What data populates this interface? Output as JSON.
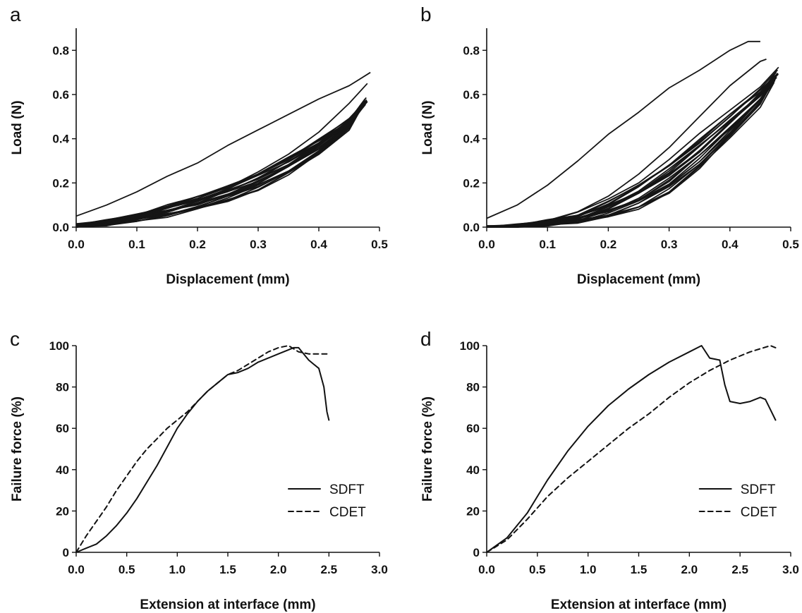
{
  "chart_data": [
    {
      "panel": "a",
      "type": "line",
      "xlabel": "Displacement (mm)",
      "ylabel": "Load (N)",
      "xlim": [
        0,
        0.5
      ],
      "ylim": [
        0,
        0.9
      ],
      "xticks": [
        "0.0",
        "0.1",
        "0.2",
        "0.3",
        "0.4",
        "0.5"
      ],
      "yticks": [
        "0.0",
        "0.2",
        "0.4",
        "0.6",
        "0.8"
      ],
      "grid": false,
      "series": [
        {
          "role": "first-cycle-loading",
          "x": [
            0.0,
            0.05,
            0.1,
            0.15,
            0.2,
            0.25,
            0.3,
            0.35,
            0.4,
            0.45,
            0.48
          ],
          "y": [
            0.0,
            0.02,
            0.05,
            0.09,
            0.13,
            0.18,
            0.25,
            0.33,
            0.43,
            0.56,
            0.65
          ]
        },
        {
          "role": "first-cycle-unloading",
          "x": [
            0.485,
            0.45,
            0.4,
            0.35,
            0.3,
            0.25,
            0.2,
            0.15,
            0.1,
            0.05,
            0.0
          ],
          "y": [
            0.7,
            0.64,
            0.58,
            0.51,
            0.44,
            0.37,
            0.29,
            0.23,
            0.16,
            0.1,
            0.05
          ]
        },
        {
          "role": "later-cycles-upper",
          "x": [
            0.0,
            0.05,
            0.1,
            0.15,
            0.2,
            0.25,
            0.3,
            0.35,
            0.4,
            0.45,
            0.48
          ],
          "y": [
            0.01,
            0.03,
            0.06,
            0.1,
            0.14,
            0.19,
            0.25,
            0.32,
            0.4,
            0.49,
            0.58
          ]
        },
        {
          "role": "later-cycles-lower",
          "x": [
            0.0,
            0.05,
            0.1,
            0.15,
            0.2,
            0.25,
            0.3,
            0.35,
            0.4,
            0.45,
            0.48
          ],
          "y": [
            0.0,
            0.01,
            0.03,
            0.05,
            0.08,
            0.12,
            0.17,
            0.24,
            0.33,
            0.45,
            0.56
          ]
        }
      ]
    },
    {
      "panel": "b",
      "type": "line",
      "xlabel": "Displacement (mm)",
      "ylabel": "Load (N)",
      "xlim": [
        0,
        0.5
      ],
      "ylim": [
        0,
        0.9
      ],
      "xticks": [
        "0.0",
        "0.1",
        "0.2",
        "0.3",
        "0.4",
        "0.5"
      ],
      "yticks": [
        "0.0",
        "0.2",
        "0.4",
        "0.6",
        "0.8"
      ],
      "grid": false,
      "series": [
        {
          "role": "first-cycle-loading",
          "x": [
            0.0,
            0.05,
            0.1,
            0.15,
            0.2,
            0.25,
            0.3,
            0.35,
            0.4,
            0.45,
            0.46
          ],
          "y": [
            0.0,
            0.01,
            0.03,
            0.07,
            0.14,
            0.24,
            0.36,
            0.5,
            0.64,
            0.75,
            0.76
          ]
        },
        {
          "role": "first-cycle-unloading",
          "x": [
            0.45,
            0.43,
            0.4,
            0.35,
            0.3,
            0.25,
            0.2,
            0.15,
            0.1,
            0.05,
            0.0
          ],
          "y": [
            0.84,
            0.84,
            0.8,
            0.71,
            0.63,
            0.52,
            0.42,
            0.3,
            0.19,
            0.1,
            0.04
          ]
        },
        {
          "role": "later-cycles-upper",
          "x": [
            0.0,
            0.05,
            0.1,
            0.15,
            0.2,
            0.25,
            0.3,
            0.35,
            0.4,
            0.45,
            0.48
          ],
          "y": [
            0.0,
            0.01,
            0.03,
            0.06,
            0.12,
            0.2,
            0.3,
            0.41,
            0.52,
            0.63,
            0.71
          ]
        },
        {
          "role": "later-cycles-lower",
          "x": [
            0.0,
            0.05,
            0.1,
            0.15,
            0.2,
            0.25,
            0.3,
            0.35,
            0.4,
            0.45,
            0.48
          ],
          "y": [
            0.0,
            0.0,
            0.01,
            0.02,
            0.04,
            0.08,
            0.15,
            0.26,
            0.4,
            0.55,
            0.66
          ]
        }
      ]
    },
    {
      "panel": "c",
      "type": "line",
      "xlabel": "Extension at interface (mm)",
      "ylabel": "Failure force (%)",
      "xlim": [
        0,
        3.0
      ],
      "ylim": [
        0,
        100
      ],
      "xticks": [
        "0.0",
        "0.5",
        "1.0",
        "1.5",
        "2.0",
        "2.5",
        "3.0"
      ],
      "yticks": [
        "0",
        "20",
        "40",
        "60",
        "80",
        "100"
      ],
      "grid": false,
      "legend": "lower-right",
      "series": [
        {
          "name": "SDFT",
          "style": "solid",
          "x": [
            0.0,
            0.1,
            0.2,
            0.3,
            0.4,
            0.5,
            0.6,
            0.7,
            0.8,
            0.9,
            1.0,
            1.1,
            1.2,
            1.3,
            1.4,
            1.5,
            1.6,
            1.7,
            1.8,
            1.9,
            2.0,
            2.1,
            2.15,
            2.2,
            2.25,
            2.3,
            2.35,
            2.4,
            2.45,
            2.48,
            2.5
          ],
          "y": [
            0,
            2,
            4,
            8,
            13,
            19,
            26,
            34,
            42,
            51,
            60,
            67,
            73,
            78,
            82,
            86,
            87,
            89,
            92,
            94,
            96,
            98,
            99,
            99,
            96,
            93,
            91,
            89,
            80,
            68,
            64
          ]
        },
        {
          "name": "CDET",
          "style": "dashed",
          "x": [
            0.0,
            0.1,
            0.2,
            0.3,
            0.4,
            0.5,
            0.6,
            0.7,
            0.8,
            0.9,
            1.0,
            1.1,
            1.2,
            1.3,
            1.4,
            1.5,
            1.6,
            1.7,
            1.8,
            1.9,
            2.0,
            2.1,
            2.2,
            2.3,
            2.4,
            2.5
          ],
          "y": [
            0,
            8,
            15,
            22,
            30,
            37,
            44,
            50,
            55,
            60,
            64,
            68,
            73,
            78,
            82,
            86,
            88,
            91,
            94,
            97,
            99,
            100,
            97,
            96,
            96,
            96
          ]
        }
      ]
    },
    {
      "panel": "d",
      "type": "line",
      "xlabel": "Extension at interface (mm)",
      "ylabel": "Failure force (%)",
      "xlim": [
        0,
        3.0
      ],
      "ylim": [
        0,
        100
      ],
      "xticks": [
        "0.0",
        "0.5",
        "1.0",
        "1.5",
        "2.0",
        "2.5",
        "3.0"
      ],
      "yticks": [
        "0",
        "20",
        "40",
        "60",
        "80",
        "100"
      ],
      "grid": false,
      "legend": "lower-right",
      "series": [
        {
          "name": "SDFT",
          "style": "solid",
          "x": [
            0.0,
            0.2,
            0.4,
            0.5,
            0.6,
            0.8,
            1.0,
            1.2,
            1.4,
            1.6,
            1.8,
            2.0,
            2.12,
            2.2,
            2.3,
            2.35,
            2.4,
            2.5,
            2.6,
            2.7,
            2.75,
            2.8,
            2.85
          ],
          "y": [
            0,
            7,
            19,
            27,
            35,
            49,
            61,
            71,
            79,
            86,
            92,
            97,
            100,
            94,
            93,
            81,
            73,
            72,
            73,
            75,
            74,
            69,
            64
          ]
        },
        {
          "name": "CDET",
          "style": "dashed",
          "x": [
            0.0,
            0.2,
            0.4,
            0.6,
            0.8,
            1.0,
            1.2,
            1.4,
            1.6,
            1.8,
            2.0,
            2.2,
            2.4,
            2.6,
            2.8,
            2.85
          ],
          "y": [
            0,
            6,
            16,
            27,
            36,
            44,
            52,
            60,
            67,
            75,
            82,
            88,
            93,
            97,
            100,
            99
          ]
        }
      ]
    }
  ]
}
